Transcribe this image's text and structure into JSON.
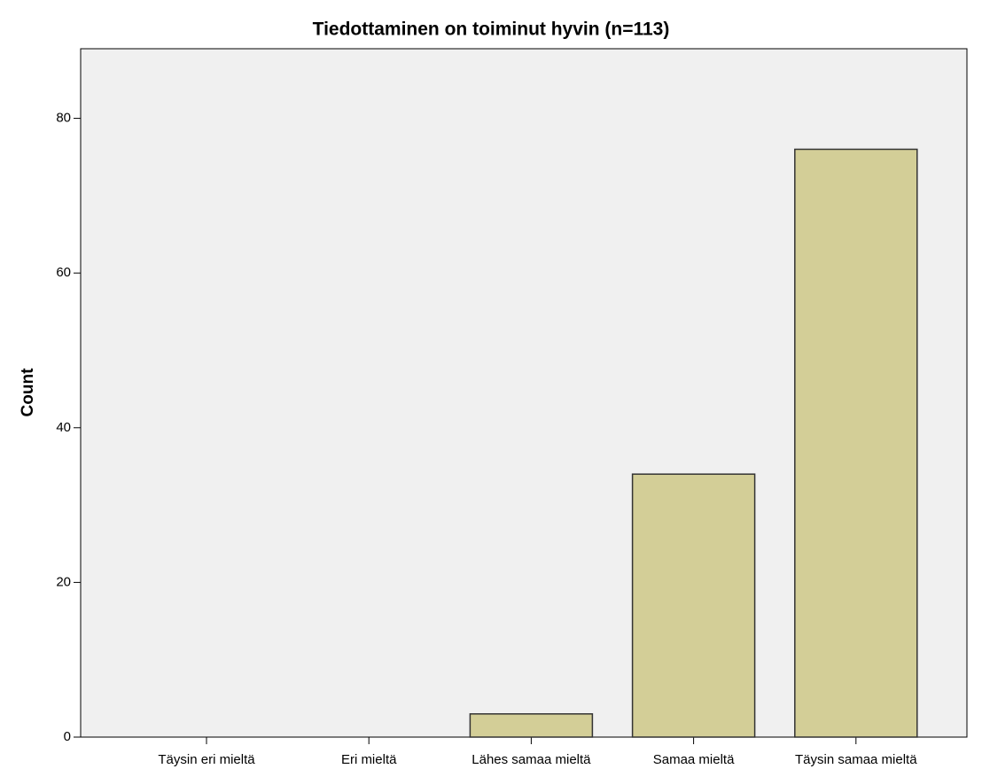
{
  "chart_data": {
    "type": "bar",
    "title": "Tiedottaminen on toiminut hyvin (n=113)",
    "y_label": "Count",
    "categories": [
      "Täysin eri mieltä",
      "Eri mieltä",
      "Lähes samaa mieltä",
      "Samaa mieltä",
      "Täysin samaa mieltä"
    ],
    "values": [
      0,
      0,
      3,
      34,
      76
    ],
    "color": "#d3ce97",
    "ylim": [
      0,
      89
    ],
    "yticks": [
      0,
      20,
      40,
      60,
      80
    ],
    "grid": false
  }
}
